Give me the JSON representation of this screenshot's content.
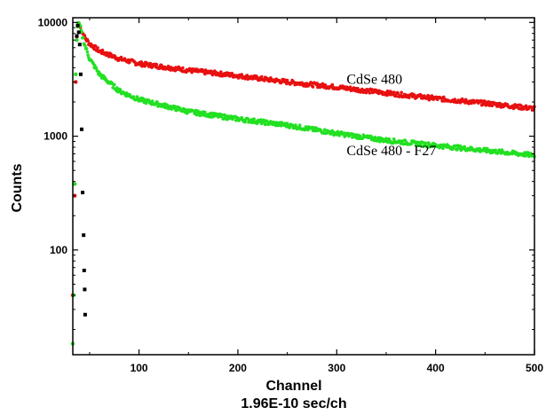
{
  "chart_data": {
    "type": "scatter",
    "title": "",
    "xlabel": "Channel",
    "xlabel_sub": "1.96E-10 sec/ch",
    "ylabel": "Counts",
    "xlim": [
      33,
      500
    ],
    "ylim": [
      12,
      11000
    ],
    "yscale": "log",
    "x_ticks": [
      100,
      200,
      300,
      400,
      500
    ],
    "y_ticks": [
      {
        "value": 100,
        "label": "100"
      },
      {
        "value": 1000,
        "label": "1000"
      },
      {
        "value": 10000,
        "label": "10000"
      }
    ],
    "grid": false,
    "series": [
      {
        "name": "CdSe 480",
        "color": "#e81010",
        "label_at": [
          310,
          2900
        ],
        "points": [
          [
            33,
            40
          ],
          [
            35,
            300
          ],
          [
            36,
            3000
          ],
          [
            37,
            7500
          ],
          [
            38,
            9500
          ],
          [
            39,
            9700
          ],
          [
            40,
            9300
          ],
          [
            42,
            8400
          ],
          [
            45,
            7400
          ],
          [
            50,
            6500
          ],
          [
            60,
            5600
          ],
          [
            80,
            4800
          ],
          [
            100,
            4350
          ],
          [
            150,
            3800
          ],
          [
            200,
            3400
          ],
          [
            250,
            3000
          ],
          [
            300,
            2700
          ],
          [
            350,
            2400
          ],
          [
            400,
            2150
          ],
          [
            450,
            1950
          ],
          [
            500,
            1750
          ]
        ]
      },
      {
        "name": "CdSe 480 - F27",
        "color": "#22e022",
        "label_at": [
          310,
          680
        ],
        "points": [
          [
            33,
            15
          ],
          [
            34,
            40
          ],
          [
            35,
            380
          ],
          [
            36,
            3500
          ],
          [
            37,
            7000
          ],
          [
            38,
            9200
          ],
          [
            39,
            9900
          ],
          [
            40,
            9400
          ],
          [
            42,
            8000
          ],
          [
            45,
            6400
          ],
          [
            50,
            4800
          ],
          [
            60,
            3500
          ],
          [
            80,
            2500
          ],
          [
            100,
            2100
          ],
          [
            150,
            1650
          ],
          [
            200,
            1420
          ],
          [
            250,
            1250
          ],
          [
            300,
            1060
          ],
          [
            350,
            920
          ],
          [
            400,
            830
          ],
          [
            450,
            750
          ],
          [
            500,
            680
          ]
        ]
      },
      {
        "name": "",
        "color": "#000000",
        "points": [
          [
            37,
            7600
          ],
          [
            38,
            9400
          ],
          [
            39,
            8200
          ],
          [
            40,
            6400
          ],
          [
            41,
            3500
          ],
          [
            42,
            1150
          ],
          [
            43,
            320
          ],
          [
            44,
            135
          ],
          [
            44.5,
            66
          ],
          [
            45,
            45
          ],
          [
            45.5,
            27
          ]
        ]
      }
    ]
  }
}
